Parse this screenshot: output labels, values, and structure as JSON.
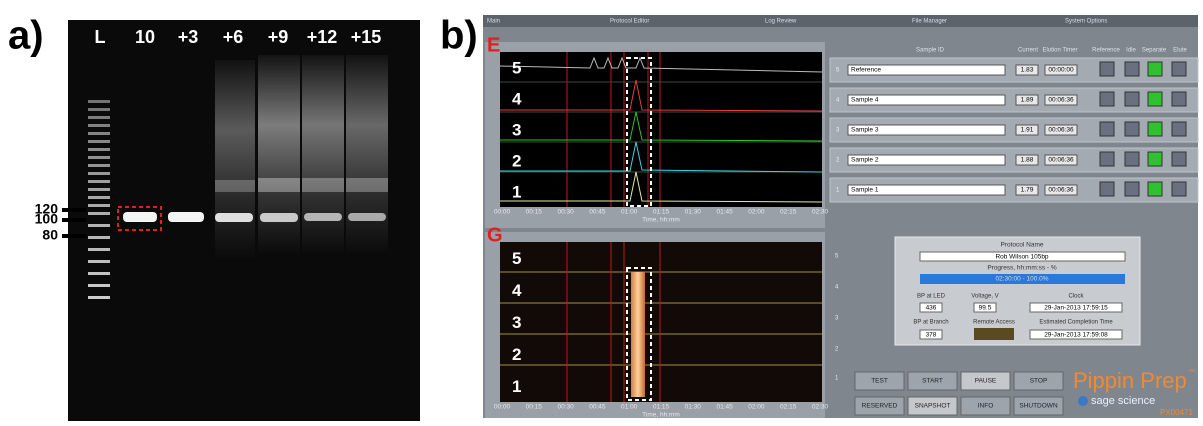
{
  "panel_a": {
    "label": "a)",
    "lanes": [
      "L",
      "10",
      "+3",
      "+6",
      "+9",
      "+12",
      "+15"
    ],
    "size_markers": [
      "120",
      "100",
      "80"
    ]
  },
  "panel_b": {
    "label": "b)",
    "tabs": [
      "Main",
      "Protocol Editor",
      "Log Review",
      "File Manager",
      "System Options"
    ],
    "electropherogram": {
      "label": "E",
      "channels": [
        "5",
        "4",
        "3",
        "2",
        "1"
      ],
      "x_ticks": [
        "00:00",
        "00:15",
        "00:30",
        "00:45",
        "01:00",
        "01:15",
        "01:30",
        "01:45",
        "02:00",
        "02:15",
        "02:30"
      ],
      "x_axis_label": "Time, hh:mm"
    },
    "gel_image": {
      "label": "G",
      "channels": [
        "5",
        "4",
        "3",
        "2",
        "1"
      ],
      "x_ticks": [
        "00:00",
        "00:15",
        "00:30",
        "00:45",
        "01:00",
        "01:15",
        "01:30",
        "01:45",
        "02:00",
        "02:15",
        "02:30"
      ],
      "x_axis_label": "Time, hh:mm",
      "side_channels": [
        "5",
        "4",
        "3",
        "2",
        "1"
      ]
    },
    "sample_table": {
      "headers": [
        "Sample ID",
        "Current",
        "Elution Timer",
        "Reference",
        "Idle",
        "Separate",
        "Elute"
      ],
      "rows": [
        [
          "5",
          "Reference",
          "1.83",
          "00:00:00"
        ],
        [
          "4",
          "Sample 4",
          "1.89",
          "00:06:36"
        ],
        [
          "3",
          "Sample 3",
          "1.91",
          "00:06:36"
        ],
        [
          "2",
          "Sample 2",
          "1.88",
          "00:06:36"
        ],
        [
          "1",
          "Sample 1",
          "1.79",
          "00:06:36"
        ]
      ]
    },
    "protocol": {
      "name_label": "Protocol Name",
      "name": "Rob Wilson 105bp",
      "progress_label": "Progress, hh:mm:ss - %",
      "progress": "02:30:00 - 100.0%",
      "bp_led_label": "BP at LED",
      "bp_led": "436",
      "voltage_label": "Voltage, V",
      "voltage": "99.5",
      "clock_label": "Clock",
      "clock": "29-Jan-2013   17:59:15",
      "bp_branch_label": "BP at Branch",
      "bp_branch": "378",
      "remote_label": "Remote Access",
      "completion_label": "Estimated Completion Time",
      "completion": "29-Jan-2013   17:59:08"
    },
    "buttons": [
      "TEST",
      "START",
      "PAUSE",
      "STOP",
      "RESERVED",
      "SNAPSHOT",
      "INFO",
      "SHUTDOWN"
    ],
    "brand": {
      "name": "Pippin Prep",
      "tm": "™",
      "company": "sage science",
      "serial": "PX00471"
    }
  }
}
